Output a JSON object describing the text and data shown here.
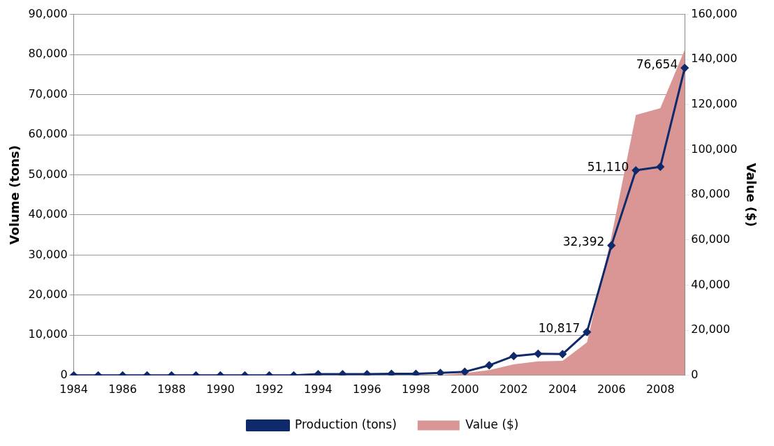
{
  "chart_data": {
    "type": "line",
    "ylabel": "Volume (tons)",
    "y2label": "Value ($)",
    "categories": [
      "1984",
      null,
      "1986",
      null,
      "1988",
      null,
      "1990",
      null,
      "1992",
      null,
      "1994",
      null,
      "1996",
      null,
      "1998",
      null,
      "2000",
      null,
      "2002",
      null,
      "2004",
      null,
      "2006",
      null,
      "2008",
      null
    ],
    "series": [
      {
        "name": "Value ($)",
        "type": "area",
        "axis": "y2",
        "color": "#d99694",
        "values": [
          0,
          0,
          0,
          0,
          0,
          0,
          0,
          0,
          0,
          0,
          0,
          0,
          0,
          0,
          0,
          200,
          1000,
          2300,
          4900,
          6200,
          6400,
          14600,
          61500,
          115400,
          118400,
          144300
        ]
      },
      {
        "name": "Production (tons)",
        "color": "#0f2a6b",
        "marker": "diamond",
        "values": [
          0,
          0,
          0,
          0,
          0,
          0,
          0,
          0,
          0,
          0,
          300,
          300,
          300,
          400,
          400,
          600,
          900,
          2500,
          4800,
          5400,
          5300,
          10817,
          32392,
          51110,
          52000,
          76654
        ],
        "value_labels": [
          null,
          null,
          null,
          null,
          null,
          null,
          null,
          null,
          null,
          null,
          null,
          null,
          null,
          null,
          null,
          null,
          null,
          null,
          null,
          null,
          null,
          "10,817",
          "32,392",
          "51,110",
          null,
          "76,654"
        ]
      }
    ],
    "ylim": [
      0,
      90000
    ],
    "yticks": [
      0,
      {
        "value": 10000,
        "label": "10,000"
      },
      {
        "value": 20000,
        "label": "20,000"
      },
      {
        "value": 30000,
        "label": "30,000"
      },
      {
        "value": 40000,
        "label": "40,000"
      },
      {
        "value": 50000,
        "label": "50,000"
      },
      {
        "value": 60000,
        "label": "60,000"
      },
      {
        "value": 70000,
        "label": "70,000"
      },
      {
        "value": 80000,
        "label": "80,000"
      },
      {
        "value": 90000,
        "label": "90,000"
      }
    ],
    "y2lim": [
      0,
      160000
    ],
    "y2ticks": [
      0,
      {
        "value": 20000,
        "label": "20,000"
      },
      {
        "value": 40000,
        "label": "40,000"
      },
      {
        "value": 60000,
        "label": "60,000"
      },
      {
        "value": 80000,
        "label": "80,000"
      },
      {
        "value": 100000,
        "label": "100,000"
      },
      {
        "value": 120000,
        "label": "120,000"
      },
      {
        "value": 140000,
        "label": "140,000"
      },
      {
        "value": 160000,
        "label": "160,000"
      }
    ],
    "grid": "y",
    "legend": "bottom"
  }
}
